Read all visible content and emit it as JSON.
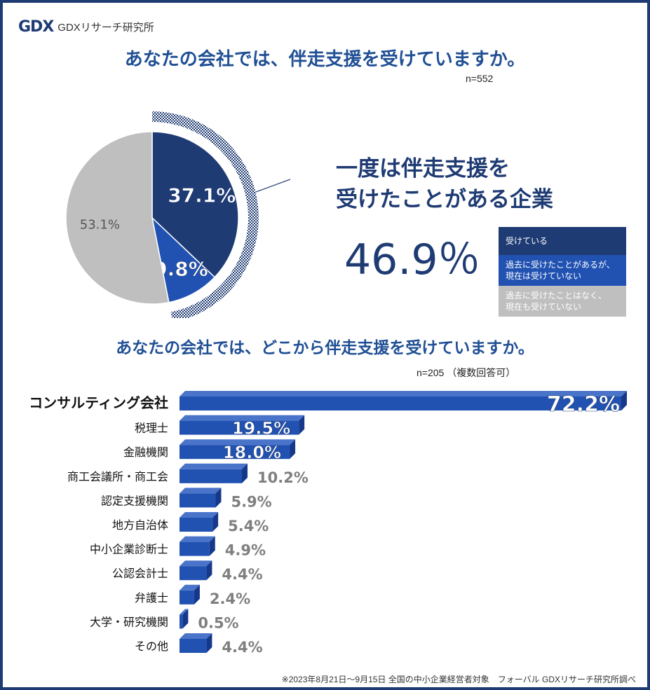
{
  "logo": {
    "mark": "GDX",
    "text": "GDXリサーチ研究所"
  },
  "colors": {
    "dark_navy": "#1f3b73",
    "blue": "#2152b2",
    "gray": "#bfbfbf",
    "title_blue": "#1f4f94",
    "label_gray": "#7f7f7f"
  },
  "chart_data": [
    {
      "type": "pie",
      "title": "あなたの会社では、伴走支援を受けていますか。",
      "n": "n=552",
      "slices": [
        {
          "name": "受けている",
          "value": 37.1,
          "label": "37.1%",
          "color": "#1f3b73"
        },
        {
          "name": "過去に受けたことがあるが、現在は受けていない",
          "value": 9.8,
          "label": "9.8%",
          "color": "#2152b2"
        },
        {
          "name": "過去に受けたことはなく、現在も受けていない",
          "value": 53.1,
          "label": "53.1%",
          "color": "#bfbfbf"
        }
      ],
      "legend": [
        {
          "line1": "受けている",
          "line2": "",
          "color": "#1f3b73"
        },
        {
          "line1": "過去に受けたことがあるが、",
          "line2": "現在は受けていない",
          "color": "#2152b2"
        },
        {
          "line1": "過去に受けたことはなく、",
          "line2": "現在も受けていない",
          "color": "#bfbfbf"
        }
      ],
      "callout": {
        "line1": "一度は伴走支援を",
        "line2": "受けたことがある企業",
        "value": "46.9％"
      }
    },
    {
      "type": "bar",
      "orientation": "horizontal",
      "title": "あなたの会社では、どこから伴走支援を受けていますか。",
      "n": "n=205 （複数回答可）",
      "xlim": [
        0,
        72.2
      ],
      "categories": [
        "コンサルティング会社",
        "税理士",
        "金融機関",
        "商工会議所・商工会",
        "認定支援機関",
        "地方自治体",
        "中小企業診断士",
        "公認会計士",
        "弁護士",
        "大学・研究機関",
        "その他"
      ],
      "values": [
        72.2,
        19.5,
        18.0,
        10.2,
        5.9,
        5.4,
        4.9,
        4.4,
        2.4,
        0.5,
        4.4
      ],
      "labels": [
        "72.2%",
        "19.5%",
        "18.0%",
        "10.2%",
        "5.9%",
        "5.4%",
        "4.9%",
        "4.4%",
        "2.4%",
        "0.5%",
        "4.4%"
      ]
    }
  ],
  "footnote": "※2023年8月21日～9月15日 全国の中小企業経営者対象　フォーバル GDXリサーチ研究所調べ"
}
